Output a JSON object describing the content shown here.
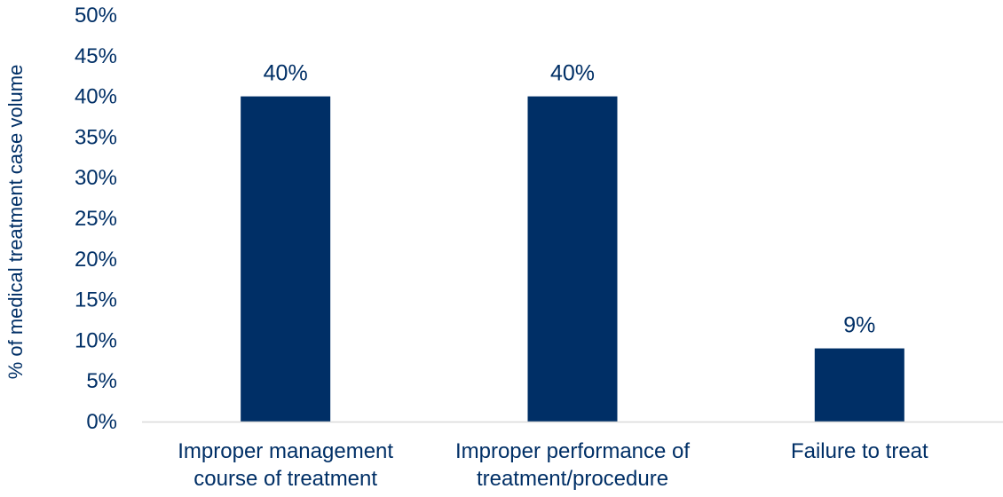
{
  "chart_data": {
    "type": "bar",
    "categories": [
      [
        "Improper management",
        "course of treatment"
      ],
      [
        "Improper performance of",
        "treatment/procedure"
      ],
      [
        "Failure to treat"
      ]
    ],
    "values": [
      40,
      40,
      9
    ],
    "data_labels": [
      "40%",
      "40%",
      "9%"
    ],
    "title": "",
    "xlabel": "",
    "ylabel": "% of medical treatment case volume",
    "ylim": [
      0,
      50
    ],
    "y_ticks": [
      "0%",
      "5%",
      "10%",
      "15%",
      "20%",
      "25%",
      "30%",
      "35%",
      "40%",
      "45%",
      "50%"
    ],
    "grid": false,
    "legend": "none",
    "bar_color": "#002f66",
    "axis_color": "#d9d9d9"
  }
}
